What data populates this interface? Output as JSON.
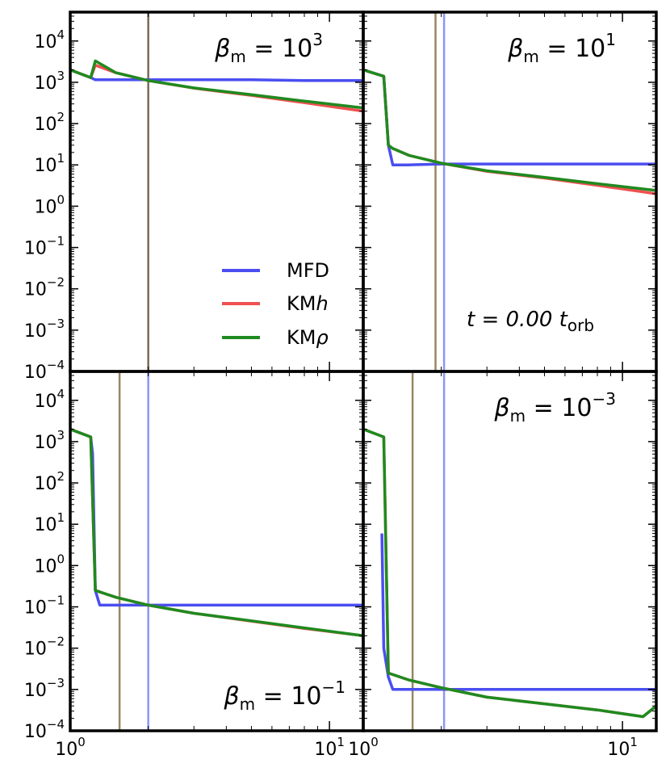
{
  "chart_data": {
    "type": "line",
    "layout": "2x2 panels, shared axes",
    "x_scale": "log",
    "y_scale": "log",
    "xlim": [
      1,
      13.5
    ],
    "ylim": [
      0.0001,
      50000
    ],
    "x_ticks": [
      {
        "value": 1,
        "base": "10",
        "exp": "0"
      },
      {
        "value": 10,
        "base": "10",
        "exp": "1"
      }
    ],
    "y_ticks": [
      {
        "value": 10000,
        "base": "10",
        "exp": "4"
      },
      {
        "value": 1000,
        "base": "10",
        "exp": "3"
      },
      {
        "value": 100,
        "base": "10",
        "exp": "2"
      },
      {
        "value": 10,
        "base": "10",
        "exp": "1"
      },
      {
        "value": 1,
        "base": "10",
        "exp": "0"
      },
      {
        "value": 0.1,
        "base": "10",
        "exp": "−1"
      },
      {
        "value": 0.01,
        "base": "10",
        "exp": "−2"
      },
      {
        "value": 0.001,
        "base": "10",
        "exp": "−3"
      },
      {
        "value": 0.0001,
        "base": "10",
        "exp": "−4"
      }
    ],
    "legend": {
      "position": "lower-right of top-left panel",
      "entries": [
        {
          "name": "MFD",
          "color": "#4a4ef0"
        },
        {
          "name": "KMh",
          "color": "#f05050"
        },
        {
          "name": "KMρ",
          "color": "#1f8a1f"
        }
      ]
    },
    "time_annotation": {
      "lhs": "t = 0.00 t",
      "sub": "orb"
    },
    "colors": {
      "MFD": "#4a4ef0",
      "KMh": "#f05050",
      "KMrho": "#1f8a1f",
      "vline_blue": "#8c96f5",
      "vline_olive": "#9a8660"
    },
    "panels": [
      {
        "label": {
          "lhs": "β",
          "sub": "m",
          "rhs": " = 10",
          "exp": "3"
        },
        "label_position": "top-right",
        "vlines": [
          {
            "x": 2.0,
            "color": "#7a6a55"
          }
        ],
        "series": [
          {
            "name": "MFD",
            "x": [
              1,
              1.2,
              1.25,
              1.5,
              2,
              3,
              5,
              8,
              13.5
            ],
            "y": [
              2000,
              1300,
              1150,
              1150,
              1150,
              1150,
              1150,
              1100,
              1100
            ]
          },
          {
            "name": "KMh",
            "x": [
              1,
              1.2,
              1.25,
              1.5,
              2,
              3,
              5,
              8,
              13.5
            ],
            "y": [
              2000,
              1300,
              2600,
              1700,
              1100,
              720,
              480,
              320,
              200
            ]
          },
          {
            "name": "KMρ",
            "x": [
              1,
              1.2,
              1.25,
              1.5,
              2,
              3,
              5,
              8,
              13.5
            ],
            "y": [
              2000,
              1300,
              3300,
              1700,
              1100,
              730,
              500,
              350,
              240
            ]
          }
        ]
      },
      {
        "label": {
          "lhs": "β",
          "sub": "m",
          "rhs": " = 10",
          "exp": "1"
        },
        "label_position": "top-right",
        "vlines": [
          {
            "x": 1.9,
            "color": "#9a8660"
          },
          {
            "x": 2.05,
            "color": "#8c96f5"
          }
        ],
        "series": [
          {
            "name": "MFD",
            "x": [
              1,
              1.2,
              1.25,
              1.3,
              1.5,
              2,
              3,
              5,
              8,
              13.5
            ],
            "y": [
              2000,
              1400,
              30,
              10,
              10,
              10.5,
              10.5,
              10.5,
              10.5,
              10.5
            ]
          },
          {
            "name": "KMh",
            "x": [
              1,
              1.2,
              1.25,
              1.3,
              1.5,
              2,
              3,
              5,
              8,
              13.5
            ],
            "y": [
              2000,
              1400,
              30,
              25,
              17,
              11,
              7,
              4.8,
              3.2,
              2
            ]
          },
          {
            "name": "KMρ",
            "x": [
              1,
              1.2,
              1.25,
              1.3,
              1.5,
              2,
              3,
              5,
              8,
              13.5
            ],
            "y": [
              2000,
              1400,
              30,
              25,
              17,
              11,
              7.2,
              5,
              3.5,
              2.4
            ]
          }
        ]
      },
      {
        "label": {
          "lhs": "β",
          "sub": "m",
          "rhs": " = 10",
          "exp": "−1"
        },
        "label_position": "bottom-right",
        "vlines": [
          {
            "x": 1.55,
            "color": "#9a8660"
          },
          {
            "x": 2.0,
            "color": "#8c96f5"
          }
        ],
        "series": [
          {
            "name": "MFD",
            "x": [
              1,
              1.2,
              1.22,
              1.25,
              1.3,
              1.5,
              2,
              3,
              5,
              8,
              13.5
            ],
            "y": [
              2000,
              1300,
              500,
              0.25,
              0.11,
              0.11,
              0.11,
              0.11,
              0.11,
              0.11,
              0.11
            ]
          },
          {
            "name": "KMh",
            "x": [
              1,
              1.2,
              1.25,
              1.5,
              2,
              3,
              5,
              8,
              13.5
            ],
            "y": [
              2000,
              1300,
              0.25,
              0.17,
              0.11,
              0.07,
              0.045,
              0.03,
              0.02
            ]
          },
          {
            "name": "KMρ",
            "x": [
              1,
              1.2,
              1.25,
              1.5,
              2,
              3,
              5,
              8,
              13.5
            ],
            "y": [
              2000,
              1300,
              0.25,
              0.17,
              0.11,
              0.07,
              0.046,
              0.031,
              0.02
            ]
          }
        ]
      },
      {
        "label": {
          "lhs": "β",
          "sub": "m",
          "rhs": " = 10",
          "exp": "−3"
        },
        "label_position": "top-right",
        "vlines": [
          {
            "x": 1.55,
            "color": "#9a8660"
          },
          {
            "x": 2.05,
            "color": "#8c96f5"
          }
        ],
        "series": [
          {
            "name": "MFD",
            "x": [
              1.18,
              1.2,
              1.25,
              1.3,
              1.5,
              2,
              3,
              5,
              8,
              13.5
            ],
            "y": [
              6,
              0.01,
              0.002,
              0.001,
              0.001,
              0.001,
              0.001,
              0.001,
              0.001,
              0.001
            ]
          },
          {
            "name": "KMh",
            "x": [
              1,
              1.2,
              1.25,
              1.5,
              2,
              3,
              5,
              8,
              12,
              13.5
            ],
            "y": [
              2000,
              1300,
              0.0025,
              0.0017,
              0.0011,
              0.00065,
              0.00045,
              0.00032,
              0.00022,
              0.0004
            ]
          },
          {
            "name": "KMρ",
            "x": [
              1,
              1.2,
              1.25,
              1.5,
              2,
              3,
              5,
              8,
              12,
              13.5
            ],
            "y": [
              2000,
              1300,
              0.0025,
              0.0017,
              0.0011,
              0.00065,
              0.00045,
              0.00032,
              0.00022,
              0.0004
            ]
          }
        ]
      }
    ]
  }
}
